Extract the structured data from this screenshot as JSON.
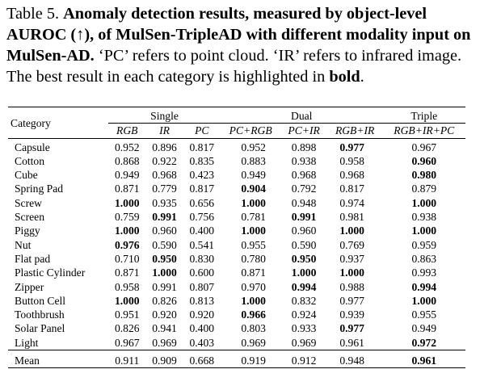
{
  "caption": {
    "label": "Table 5.",
    "bold_text": "Anomaly detection results, measured by object-level AUROC (↑), of MulSen-TripleAD with different modality input on MulSen-AD.",
    "text_before_bold": "‘PC’ refers to point cloud. ‘IR’ refers to infrared image. The best result in each category is highlighted in",
    "bold_word": "bold",
    "end": "."
  },
  "table": {
    "category_header": "Category",
    "groups": [
      "Single",
      "Dual",
      "Triple"
    ],
    "columns": [
      "RGB",
      "IR",
      "PC",
      "PC+RGB",
      "PC+IR",
      "RGB+IR",
      "RGB+IR+PC"
    ],
    "rows": [
      {
        "category": "Capsule",
        "values": [
          "0.952",
          "0.896",
          "0.817",
          "0.952",
          "0.898",
          "0.977",
          "0.967"
        ],
        "bold": [
          false,
          false,
          false,
          false,
          false,
          true,
          false
        ]
      },
      {
        "category": "Cotton",
        "values": [
          "0.868",
          "0.922",
          "0.835",
          "0.883",
          "0.938",
          "0.958",
          "0.960"
        ],
        "bold": [
          false,
          false,
          false,
          false,
          false,
          false,
          true
        ]
      },
      {
        "category": "Cube",
        "values": [
          "0.949",
          "0.968",
          "0.423",
          "0.949",
          "0.968",
          "0.968",
          "0.980"
        ],
        "bold": [
          false,
          false,
          false,
          false,
          false,
          false,
          true
        ]
      },
      {
        "category": "Spring Pad",
        "values": [
          "0.871",
          "0.779",
          "0.817",
          "0.904",
          "0.792",
          "0.817",
          "0.879"
        ],
        "bold": [
          false,
          false,
          false,
          true,
          false,
          false,
          false
        ]
      },
      {
        "category": "Screw",
        "values": [
          "1.000",
          "0.935",
          "0.656",
          "1.000",
          "0.948",
          "0.974",
          "1.000"
        ],
        "bold": [
          true,
          false,
          false,
          true,
          false,
          false,
          true
        ]
      },
      {
        "category": "Screen",
        "values": [
          "0.759",
          "0.991",
          "0.756",
          "0.781",
          "0.991",
          "0.981",
          "0.938"
        ],
        "bold": [
          false,
          true,
          false,
          false,
          true,
          false,
          false
        ]
      },
      {
        "category": "Piggy",
        "values": [
          "1.000",
          "0.960",
          "0.400",
          "1.000",
          "0.960",
          "1.000",
          "1.000"
        ],
        "bold": [
          true,
          false,
          false,
          true,
          false,
          true,
          true
        ]
      },
      {
        "category": "Nut",
        "values": [
          "0.976",
          "0.590",
          "0.541",
          "0.955",
          "0.590",
          "0.769",
          "0.959"
        ],
        "bold": [
          true,
          false,
          false,
          false,
          false,
          false,
          false
        ]
      },
      {
        "category": "Flat pad",
        "values": [
          "0.710",
          "0.950",
          "0.830",
          "0.780",
          "0.950",
          "0.937",
          "0.863"
        ],
        "bold": [
          false,
          true,
          false,
          false,
          true,
          false,
          false
        ]
      },
      {
        "category": "Plastic Cylinder",
        "values": [
          "0.871",
          "1.000",
          "0.600",
          "0.871",
          "1.000",
          "1.000",
          "0.993"
        ],
        "bold": [
          false,
          true,
          false,
          false,
          true,
          true,
          false
        ]
      },
      {
        "category": "Zipper",
        "values": [
          "0.958",
          "0.991",
          "0.807",
          "0.970",
          "0.994",
          "0.988",
          "0.994"
        ],
        "bold": [
          false,
          false,
          false,
          false,
          true,
          false,
          true
        ]
      },
      {
        "category": "Button Cell",
        "values": [
          "1.000",
          "0.826",
          "0.813",
          "1.000",
          "0.832",
          "0.977",
          "1.000"
        ],
        "bold": [
          true,
          false,
          false,
          true,
          false,
          false,
          true
        ]
      },
      {
        "category": "Toothbrush",
        "values": [
          "0.951",
          "0.920",
          "0.920",
          "0.966",
          "0.924",
          "0.939",
          "0.955"
        ],
        "bold": [
          false,
          false,
          false,
          true,
          false,
          false,
          false
        ]
      },
      {
        "category": "Solar Panel",
        "values": [
          "0.826",
          "0.941",
          "0.400",
          "0.803",
          "0.933",
          "0.977",
          "0.949"
        ],
        "bold": [
          false,
          false,
          false,
          false,
          false,
          true,
          false
        ]
      },
      {
        "category": "Light",
        "values": [
          "0.967",
          "0.969",
          "0.403",
          "0.969",
          "0.969",
          "0.961",
          "0.972"
        ],
        "bold": [
          false,
          false,
          false,
          false,
          false,
          false,
          true
        ]
      }
    ],
    "mean": {
      "category": "Mean",
      "values": [
        "0.911",
        "0.909",
        "0.668",
        "0.919",
        "0.912",
        "0.948",
        "0.961"
      ],
      "bold": [
        false,
        false,
        false,
        false,
        false,
        false,
        true
      ]
    }
  }
}
